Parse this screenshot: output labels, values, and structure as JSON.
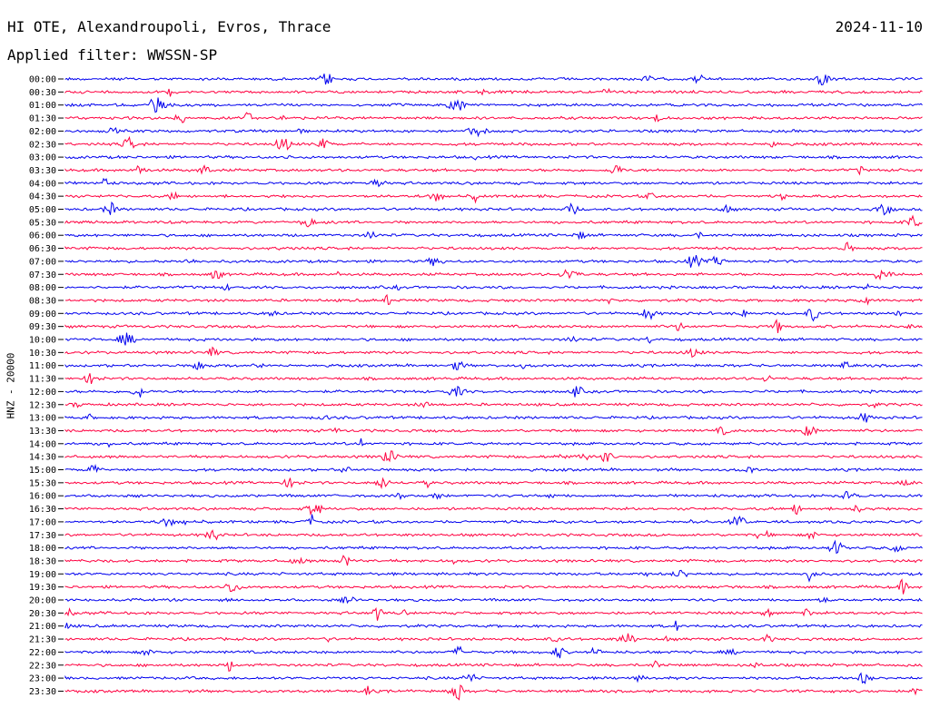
{
  "header": {
    "station": "HI OTE, Alexandroupoli, Evros, Thrace",
    "date": "2024-11-10",
    "filter": "Applied filter: WWSSN-SP"
  },
  "chart_data": {
    "type": "line",
    "ylabel": "HNZ - 20000",
    "colors": [
      "#0000ee",
      "#ff0040"
    ],
    "legend": "none",
    "grid": false,
    "row_labels": [
      "00:00",
      "00:30",
      "01:00",
      "01:30",
      "02:00",
      "02:30",
      "03:00",
      "03:30",
      "04:00",
      "04:30",
      "05:00",
      "05:30",
      "06:00",
      "06:30",
      "07:00",
      "07:30",
      "08:00",
      "08:30",
      "09:00",
      "09:30",
      "10:00",
      "10:30",
      "11:00",
      "11:30",
      "12:00",
      "12:30",
      "13:00",
      "13:30",
      "14:00",
      "14:30",
      "15:00",
      "15:30",
      "16:00",
      "16:30",
      "17:00",
      "17:30",
      "18:00",
      "18:30",
      "19:00",
      "19:30",
      "20:00",
      "20:30",
      "21:00",
      "21:30",
      "22:00",
      "22:30",
      "23:00",
      "23:30"
    ]
  }
}
